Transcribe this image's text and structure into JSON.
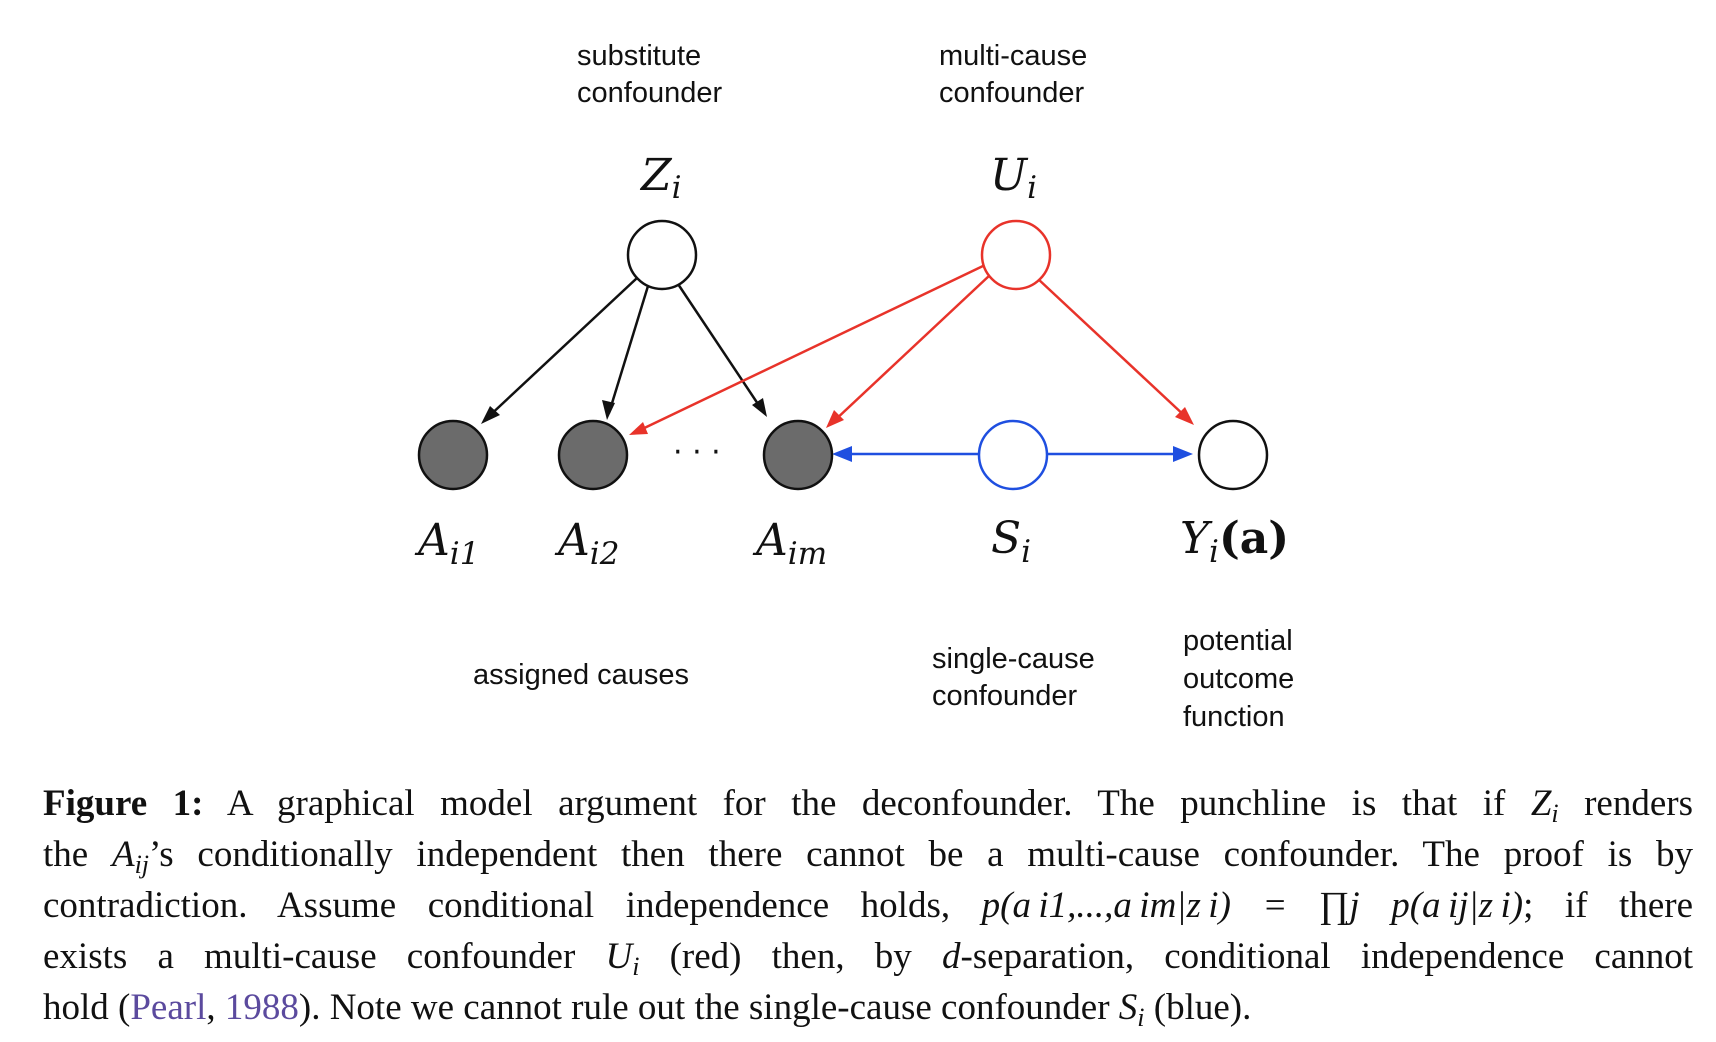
{
  "labels": {
    "substitute_line1": "substitute",
    "substitute_line2": "confounder",
    "multicause_line1": "multi-cause",
    "multicause_line2": "confounder",
    "assigned": "assigned causes",
    "singlecause_line1": "single-cause",
    "singlecause_line2": "confounder",
    "potential_line1": "potential",
    "potential_line2": "outcome",
    "potential_line3": "function",
    "dots": "· · ·"
  },
  "nodes": {
    "Z": {
      "base": "Z",
      "sub": "i"
    },
    "U": {
      "base": "U",
      "sub": "i"
    },
    "A1": {
      "base": "A",
      "sub": "i1"
    },
    "A2": {
      "base": "A",
      "sub": "i2"
    },
    "Am": {
      "base": "A",
      "sub": "im"
    },
    "S": {
      "base": "S",
      "sub": "i"
    },
    "Y": {
      "base": "Y",
      "sub": "i",
      "arg": "(a)"
    }
  },
  "colors": {
    "black_edge": "#111111",
    "red_edge": "#e8332a",
    "blue_edge": "#1f4fe0",
    "observed_fill": "#6b6b6b"
  },
  "caption": {
    "figure_label": "Figure 1:",
    "l1_a": "A graphical model argument for the deconfounder. The punchline is that if",
    "l1_z": "Z",
    "l1_zsub": "i",
    "l1_b": "renders",
    "l2_a": "the",
    "l2_var": "A",
    "l2_sub": "ij",
    "l2_b": "’s conditionally independent then there cannot be a multi-cause confounder. The proof is by",
    "l3_a": "contradiction. Assume conditional independence holds,",
    "l3_formula": "p(a i1,...,a im|z i) = ∏j p(a ij|z i)",
    "l3_b": "; if there",
    "l4_a": "exists a multi-cause confounder",
    "l4_u": "U",
    "l4_usub": "i",
    "l4_b": "(red) then, by",
    "l4_d": "d",
    "l4_c": "-separation, conditional independence cannot",
    "l5_a": "hold (",
    "l5_cite_name": "Pearl",
    "l5_comma": ", ",
    "l5_cite_year": "1988",
    "l5_b": "). Note we cannot rule out the single-cause confounder",
    "l5_s": "S",
    "l5_ssub": "i",
    "l5_c": "(blue)."
  }
}
